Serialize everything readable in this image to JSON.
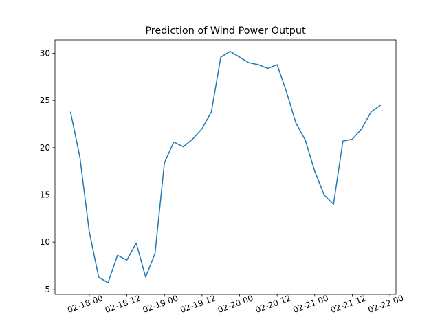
{
  "chart_data": {
    "type": "line",
    "title": "Prediction of Wind Power Output",
    "x": [
      "02-17 18",
      "02-17 21",
      "02-18 00",
      "02-18 03",
      "02-18 06",
      "02-18 09",
      "02-18 12",
      "02-18 15",
      "02-18 18",
      "02-18 21",
      "02-19 00",
      "02-19 03",
      "02-19 06",
      "02-19 09",
      "02-19 12",
      "02-19 15",
      "02-19 18",
      "02-19 21",
      "02-20 00",
      "02-20 03",
      "02-20 06",
      "02-20 09",
      "02-20 12",
      "02-20 15",
      "02-20 18",
      "02-20 21",
      "02-21 00",
      "02-21 03",
      "02-21 06",
      "02-21 09",
      "02-21 12",
      "02-21 15",
      "02-21 18",
      "02-21 21"
    ],
    "series": [
      {
        "color": "#1f77b4",
        "values": [
          23.8,
          19.0,
          11.1,
          6.3,
          5.7,
          8.6,
          8.1,
          9.9,
          6.3,
          8.8,
          18.4,
          20.6,
          20.1,
          20.9,
          22.0,
          23.8,
          29.6,
          30.2,
          29.6,
          29.0,
          28.8,
          28.4,
          28.8,
          25.9,
          22.6,
          20.8,
          17.5,
          15.0,
          14.0,
          20.7,
          20.9,
          22.0,
          23.8,
          24.5
        ]
      }
    ],
    "xlim": [
      "02-17 13:03",
      "02-22 01:57"
    ],
    "xticks": [
      "02-18 00",
      "02-18 12",
      "02-19 00",
      "02-19 12",
      "02-20 00",
      "02-20 12",
      "02-21 00",
      "02-21 12",
      "02-22 00"
    ],
    "ylim": [
      4.475,
      31.425
    ],
    "yticks": [
      5,
      10,
      15,
      20,
      25,
      30
    ]
  }
}
